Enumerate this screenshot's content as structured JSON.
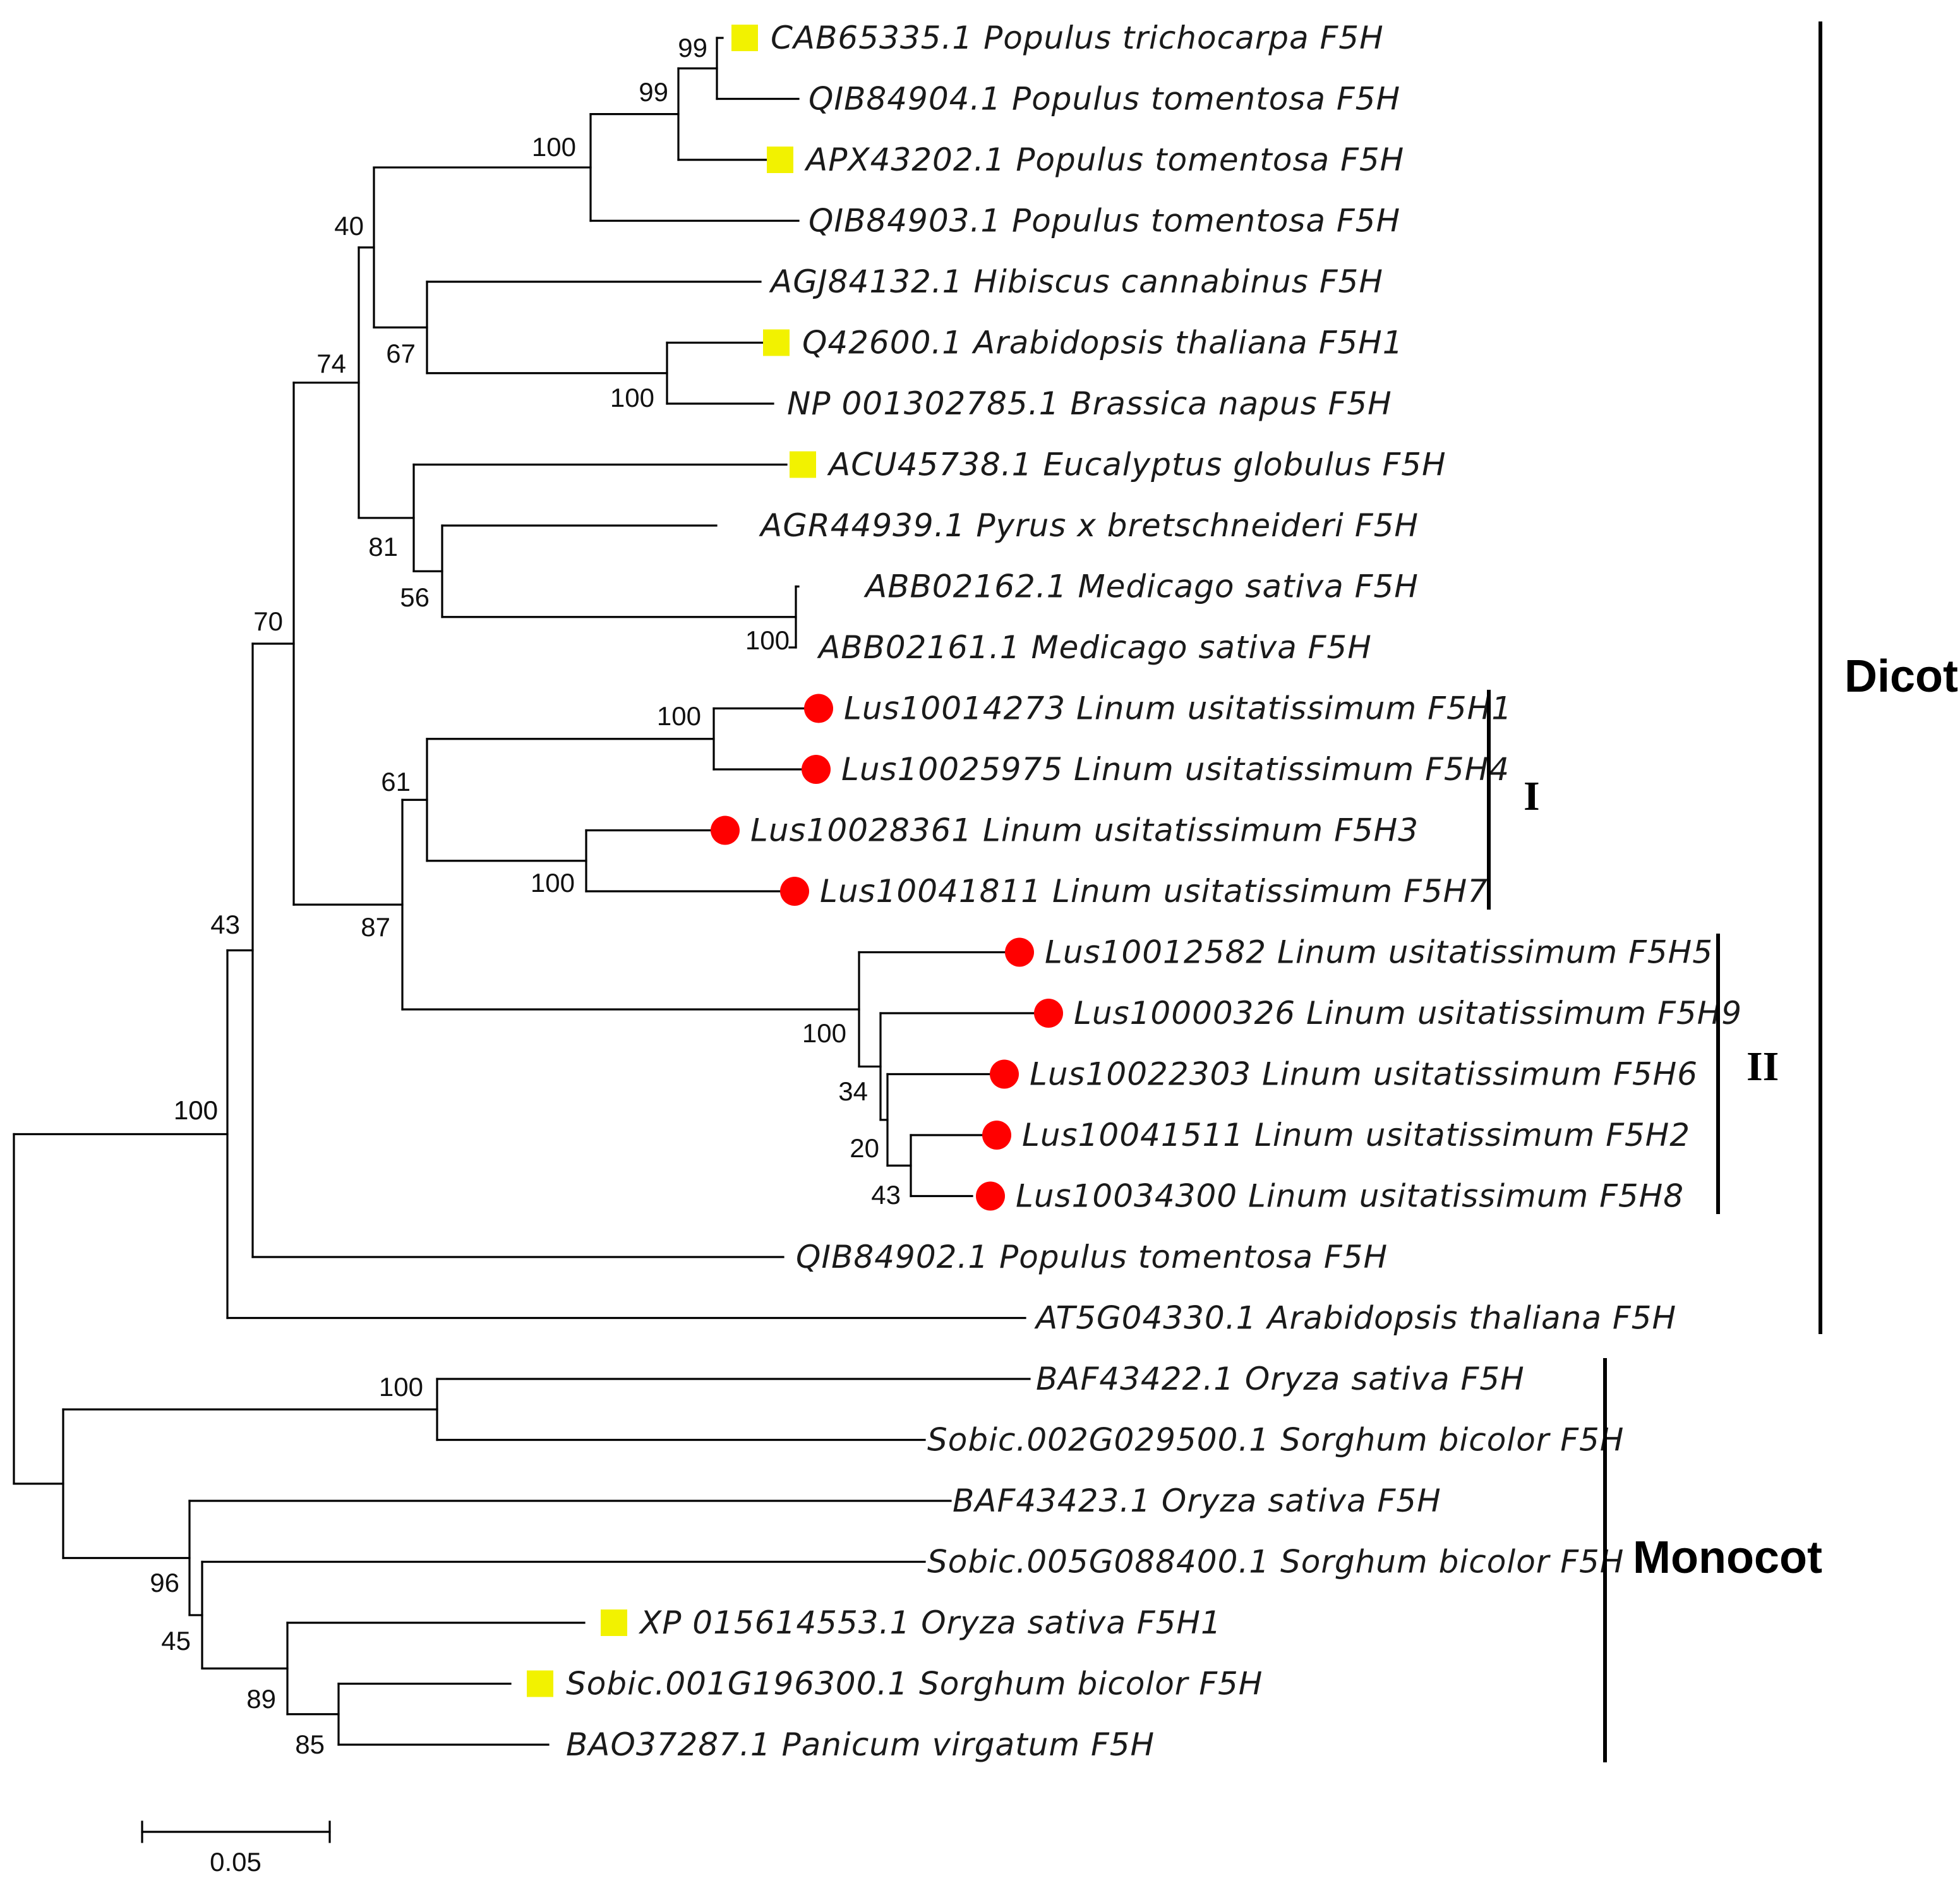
{
  "figure": {
    "type": "phylogenetic-tree",
    "marker_colors": {
      "reference": "#f2f200",
      "flax": "#ff0000"
    }
  },
  "taxa": [
    {
      "id": "t1",
      "label": "CAB65335.1 Populus trichocarpa F5H",
      "marker": "square"
    },
    {
      "id": "t2",
      "label": "QIB84904.1 Populus tomentosa F5H",
      "marker": null
    },
    {
      "id": "t3",
      "label": "APX43202.1 Populus tomentosa F5H",
      "marker": "square"
    },
    {
      "id": "t4",
      "label": "QIB84903.1 Populus tomentosa F5H",
      "marker": null
    },
    {
      "id": "t5",
      "label": "AGJ84132.1 Hibiscus cannabinus F5H",
      "marker": null
    },
    {
      "id": "t6",
      "label": "Q42600.1 Arabidopsis thaliana F5H1",
      "marker": "square"
    },
    {
      "id": "t7",
      "label": "NP 001302785.1 Brassica napus F5H",
      "marker": null
    },
    {
      "id": "t8",
      "label": "ACU45738.1 Eucalyptus globulus F5H",
      "marker": "square"
    },
    {
      "id": "t9",
      "label": "AGR44939.1 Pyrus x bretschneideri F5H",
      "marker": null
    },
    {
      "id": "t10",
      "label": "ABB02162.1 Medicago sativa F5H",
      "marker": null
    },
    {
      "id": "t11",
      "label": "ABB02161.1 Medicago sativa F5H",
      "marker": null
    },
    {
      "id": "t12",
      "label": "Lus10014273 Linum usitatissimum F5H1",
      "marker": "circle"
    },
    {
      "id": "t13",
      "label": "Lus10025975 Linum usitatissimum F5H4",
      "marker": "circle"
    },
    {
      "id": "t14",
      "label": "Lus10028361 Linum usitatissimum F5H3",
      "marker": "circle"
    },
    {
      "id": "t15",
      "label": "Lus10041811 Linum usitatissimum F5H7",
      "marker": "circle"
    },
    {
      "id": "t16",
      "label": "Lus10012582 Linum usitatissimum F5H5",
      "marker": "circle"
    },
    {
      "id": "t17",
      "label": "Lus10000326 Linum usitatissimum F5H9",
      "marker": "circle"
    },
    {
      "id": "t18",
      "label": "Lus10022303 Linum usitatissimum F5H6",
      "marker": "circle"
    },
    {
      "id": "t19",
      "label": "Lus10041511 Linum usitatissimum F5H2",
      "marker": "circle"
    },
    {
      "id": "t20",
      "label": "Lus10034300 Linum usitatissimum F5H8",
      "marker": "circle"
    },
    {
      "id": "t21",
      "label": "QIB84902.1 Populus tomentosa F5H",
      "marker": null
    },
    {
      "id": "t22",
      "label": "AT5G04330.1 Arabidopsis thaliana F5H",
      "marker": null
    },
    {
      "id": "t23",
      "label": "BAF43422.1 Oryza sativa F5H",
      "marker": null
    },
    {
      "id": "t24",
      "label": "Sobic.002G029500.1 Sorghum bicolor F5H",
      "marker": null
    },
    {
      "id": "t25",
      "label": "BAF43423.1 Oryza sativa F5H",
      "marker": null
    },
    {
      "id": "t26",
      "label": "Sobic.005G088400.1 Sorghum bicolor F5H",
      "marker": null
    },
    {
      "id": "t27",
      "label": "XP 015614553.1 Oryza sativa F5H1",
      "marker": "square"
    },
    {
      "id": "t28",
      "label": "Sobic.001G196300.1 Sorghum bicolor F5H",
      "marker": "square"
    },
    {
      "id": "t29",
      "label": "BAO37287.1 Panicum virgatum F5H",
      "marker": null
    }
  ],
  "bootstrap": {
    "n_t1_t2": "99",
    "n_t1_t3": "99",
    "n_t1_t4": "100",
    "n_t1_t7": "40",
    "n_t5_t7": "67",
    "n_t6_t7": "100",
    "n_t1_t11": "74",
    "n_t8_t11": "81",
    "n_t9_t11": "56",
    "n_t10_t11": "100",
    "n_t1_t20": "70",
    "n_t12_t20": "87",
    "n_t12_t15": "61",
    "n_t12_t13": "100",
    "n_t14_t15": "100",
    "n_t16_t20": "100",
    "n_t17_t20": "34",
    "n_t18_t20": "20",
    "n_t19_t20": "43",
    "n_t1_t21": "43",
    "n_t1_t22": "100",
    "n_t23_t24": "100",
    "n_t25_t29": "96",
    "n_t26_t29": "45",
    "n_t27_t29": "89",
    "n_t28_t29": "85"
  },
  "groups": {
    "dicot": "Dicot",
    "monocot": "Monocot",
    "clade1": "I",
    "clade2": "II"
  },
  "scale_bar": {
    "label": "0.05"
  }
}
